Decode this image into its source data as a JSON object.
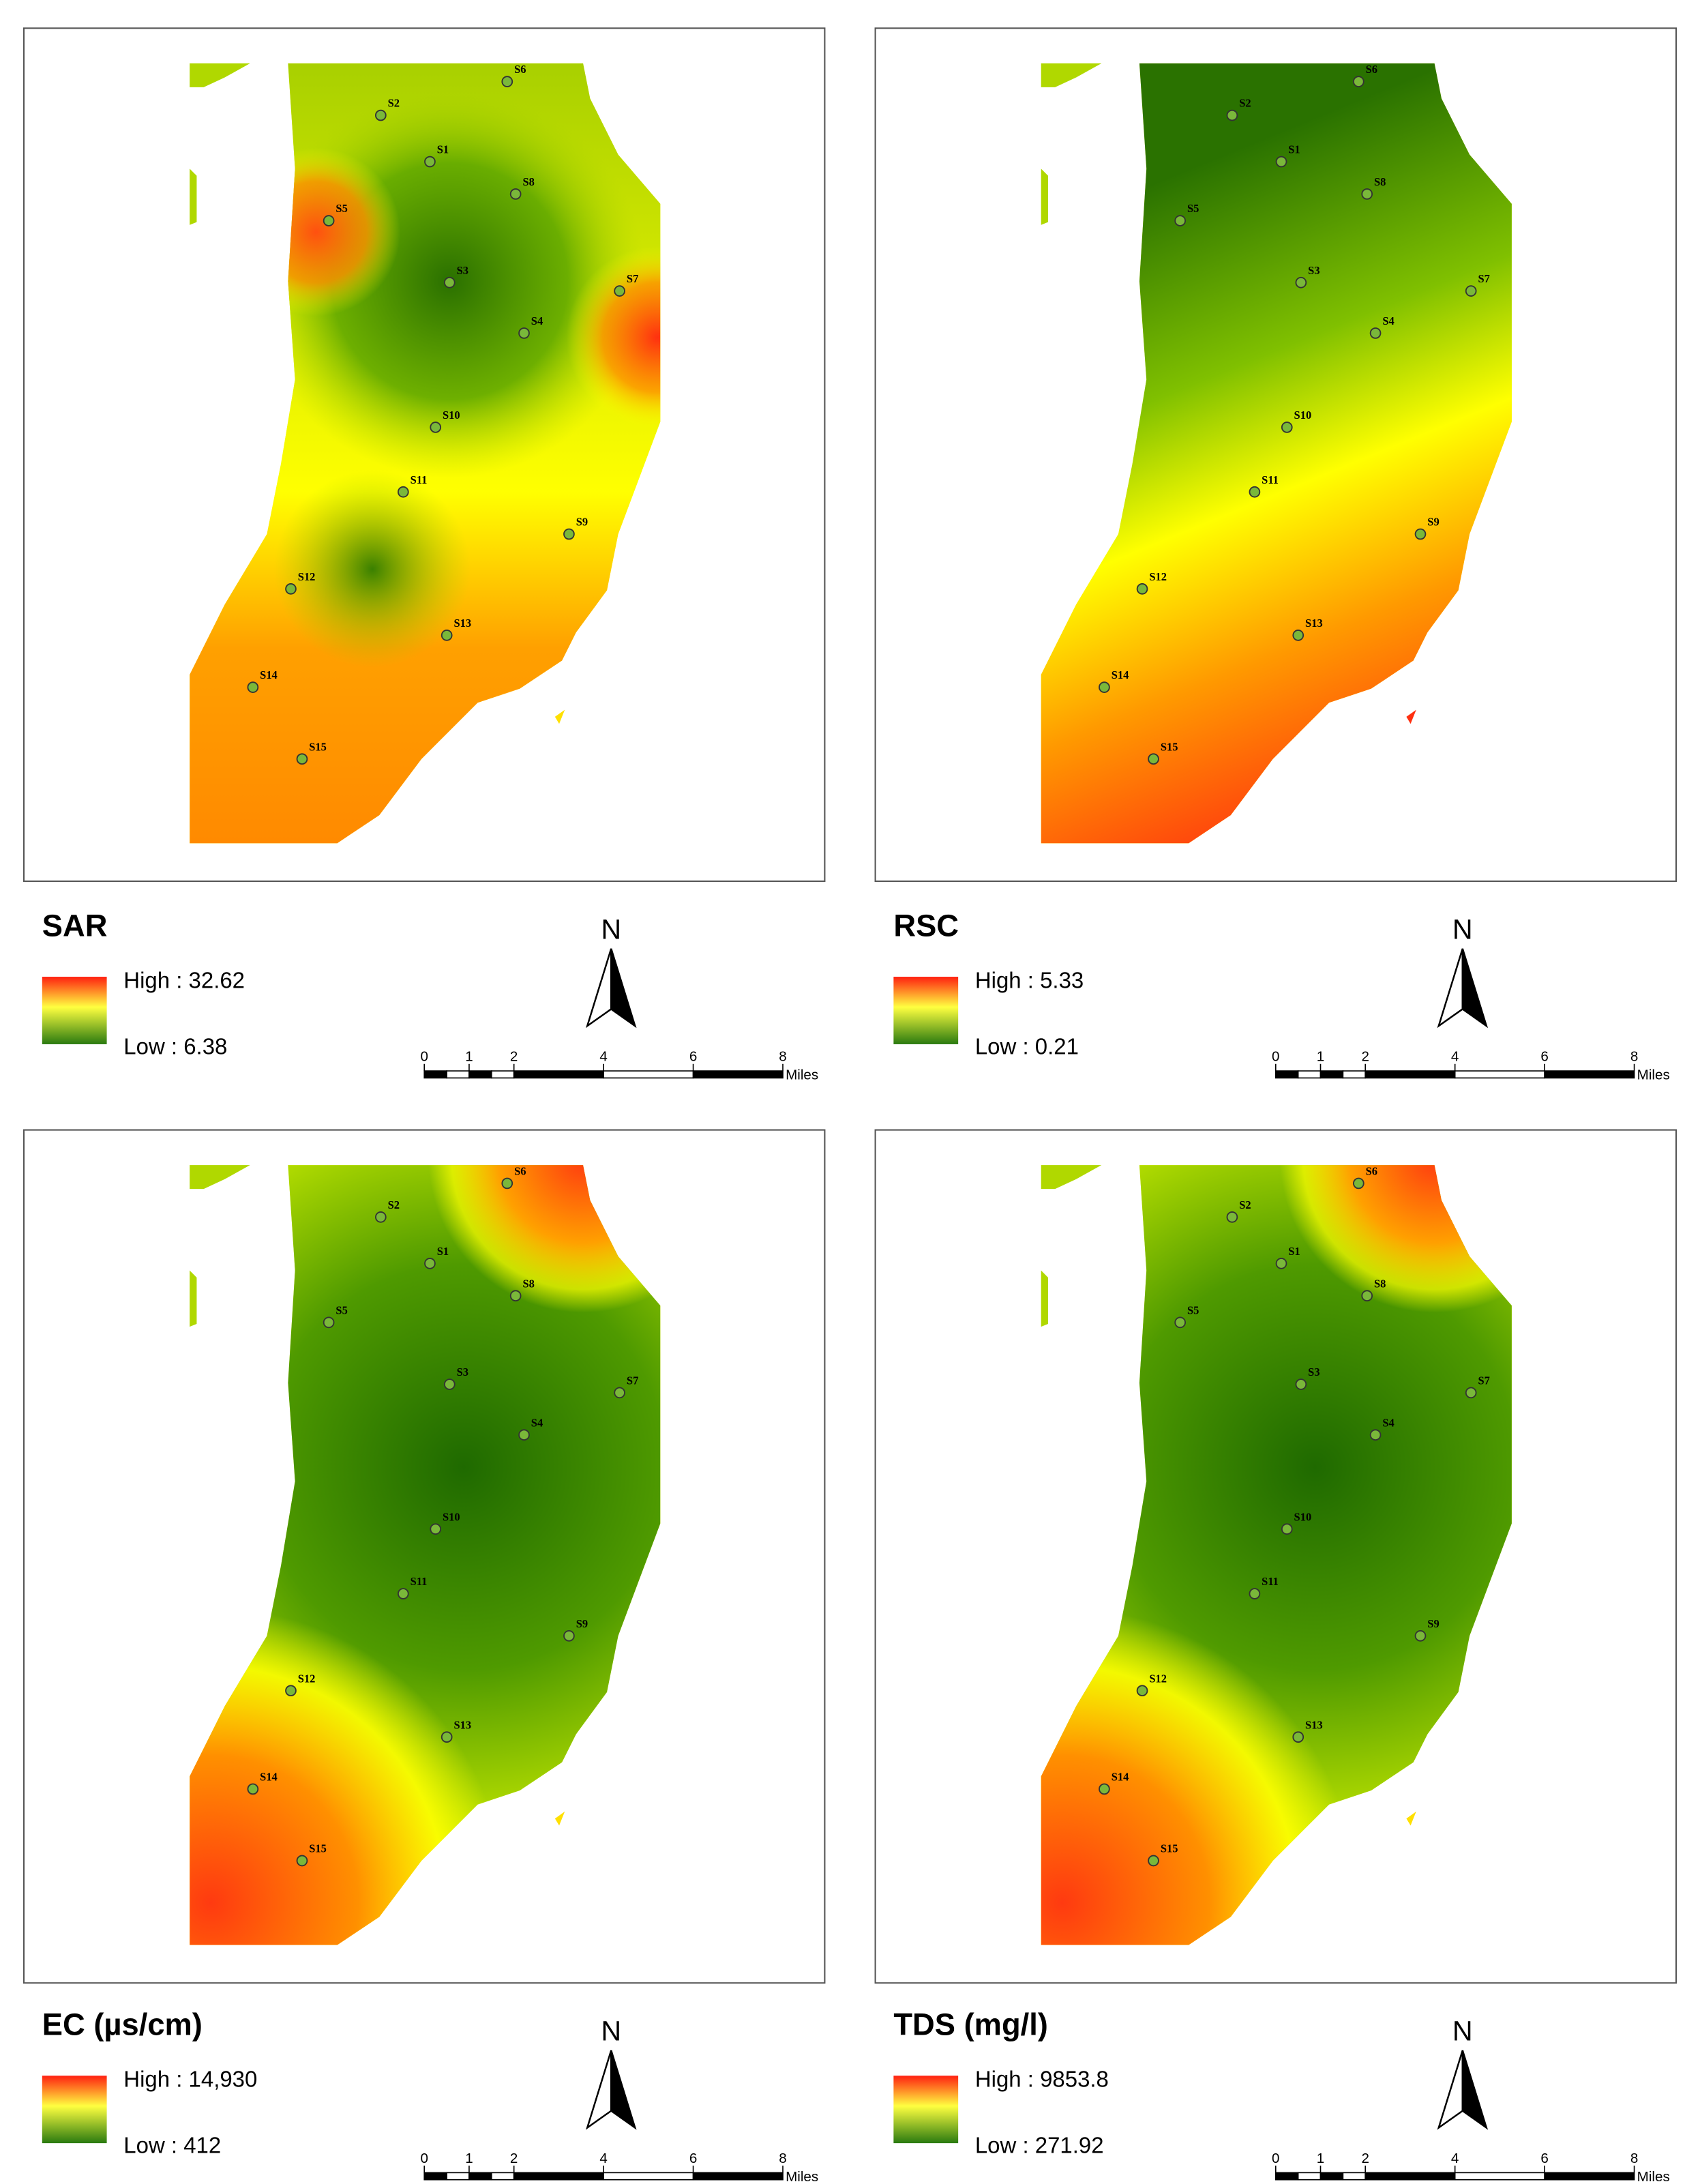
{
  "north": "N",
  "scale_bar": {
    "ticks": [
      0,
      1,
      2,
      4,
      6,
      8
    ],
    "unit": "Miles"
  },
  "stations": [
    "S1",
    "S2",
    "S3",
    "S4",
    "S5",
    "S6",
    "S7",
    "S8",
    "S9",
    "S10",
    "S11",
    "S12",
    "S13",
    "S14",
    "S15"
  ],
  "panels": [
    {
      "title": "SAR",
      "legend": {
        "high": "High : 32.62",
        "low": "Low : 6.38"
      }
    },
    {
      "title": "RSC",
      "legend": {
        "high": "High : 5.33",
        "low": "Low : 0.21"
      }
    },
    {
      "title": "EC (µs/cm)",
      "legend": {
        "high": "High : 14,930",
        "low": "Low : 412"
      }
    },
    {
      "title": "TDS (mg/l)",
      "legend": {
        "high": "High : 9853.8",
        "low": "Low : 271.92"
      }
    }
  ]
}
